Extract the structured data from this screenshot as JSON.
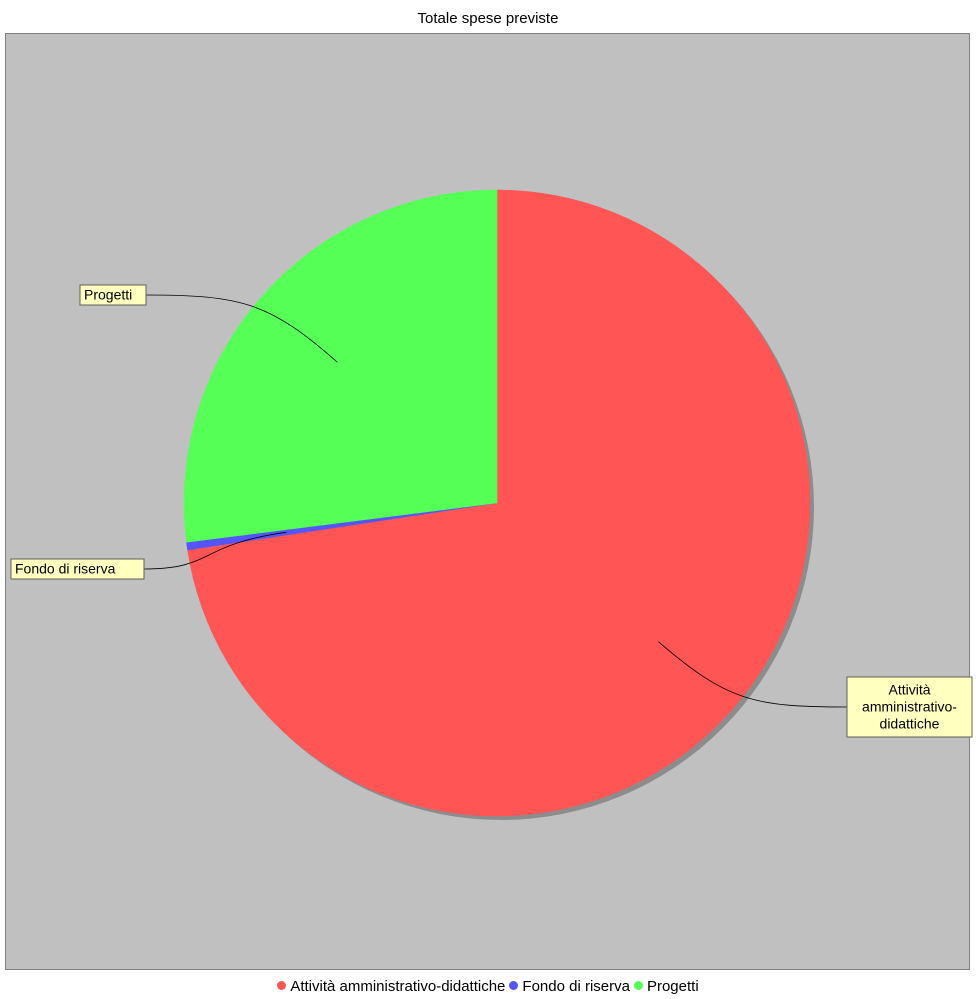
{
  "chart_data": {
    "type": "pie",
    "title": "Totale spese previste",
    "slices": [
      {
        "label": "Attività amministrativo-didattiche",
        "value": 72.6,
        "color": "#ff5555",
        "label_lines": [
          "Attività",
          "amministrativo-",
          "didattiche"
        ]
      },
      {
        "label": "Fondo di riserva",
        "value": 0.4,
        "color": "#5555ff",
        "label_lines": [
          "Fondo di riserva"
        ]
      },
      {
        "label": "Progetti",
        "value": 27.0,
        "color": "#55ff55",
        "label_lines": [
          "Progetti"
        ]
      }
    ],
    "start": "12 o'clock",
    "direction": "clockwise",
    "legend_position": "bottom",
    "background": "#c0c0c0",
    "label_box_color": "#ffffc0"
  }
}
